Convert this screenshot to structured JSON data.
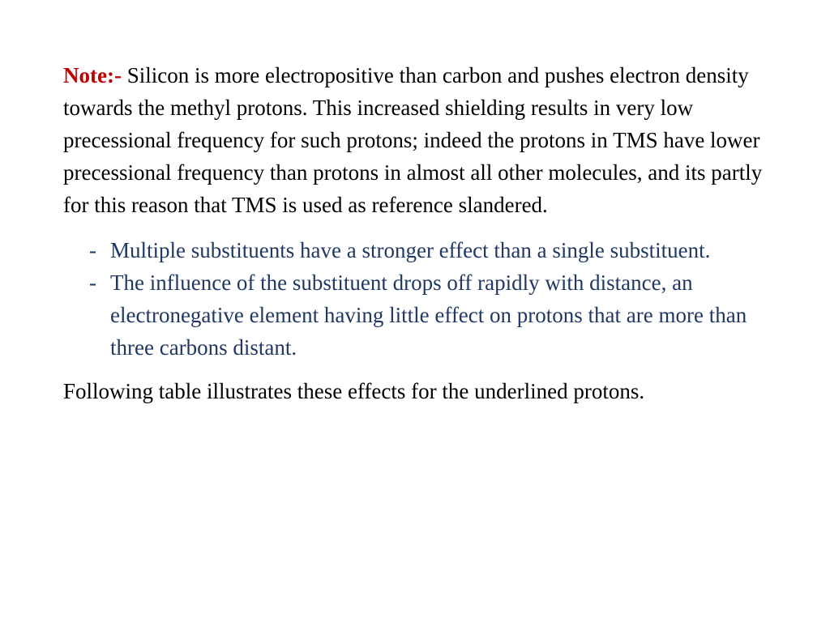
{
  "colors": {
    "background": "#ffffff",
    "body_text": "#000000",
    "note_label": "#c00000",
    "bullet_text": "#1f3864"
  },
  "typography": {
    "family": "Times New Roman",
    "body_size_pt": 20,
    "line_height": 1.48
  },
  "note": {
    "label": "Note:-",
    "text": " Silicon is more electropositive than carbon and pushes electron density towards the methyl protons. This increased shielding results in very low precessional frequency for such protons; indeed the protons in TMS have lower precessional frequency than protons in almost all other molecules, and its partly for this reason that TMS is used as reference slandered."
  },
  "bullets": [
    "Multiple substituents have a stronger effect than a single substituent.",
    "The influence of the substituent drops off rapidly with distance, an electronegative element having little effect on protons that are more than three carbons distant."
  ],
  "closing": " Following table illustrates these effects for the underlined protons."
}
